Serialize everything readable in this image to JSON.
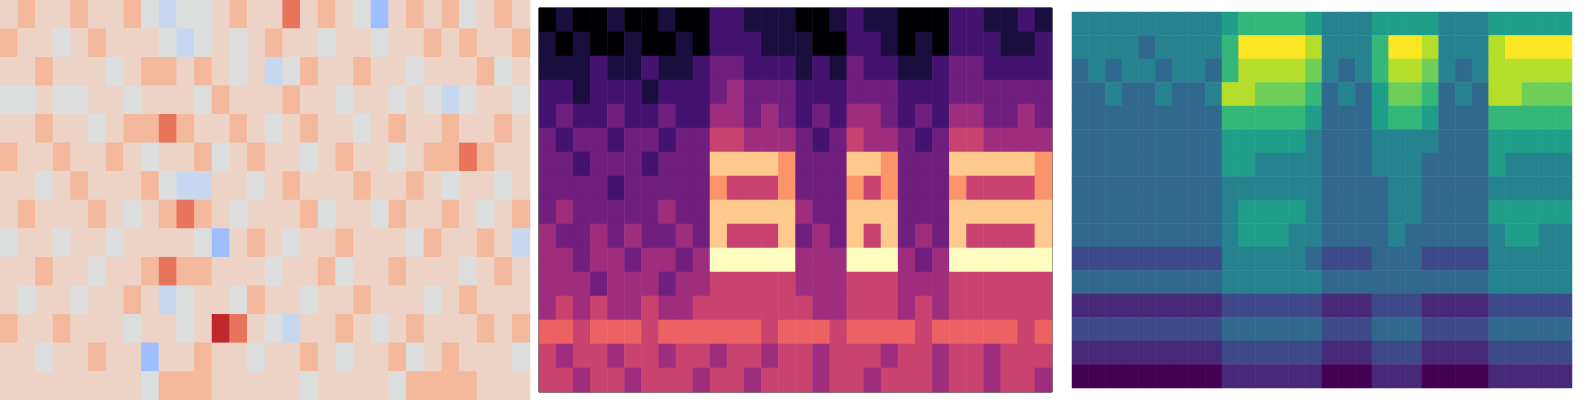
{
  "chart_data": [
    {
      "type": "heatmap",
      "tick_labels": false,
      "cells": [
        [
          1,
          2,
          1,
          1,
          2,
          1,
          1,
          2,
          0,
          -1,
          0,
          0,
          1,
          2,
          1,
          1,
          3,
          1,
          2,
          1,
          0,
          -2,
          1,
          2,
          1,
          2,
          0,
          1,
          2,
          1
        ],
        [
          2,
          1,
          1,
          0,
          1,
          2,
          1,
          1,
          1,
          0,
          -1,
          0,
          1,
          0,
          1,
          2,
          1,
          1,
          0,
          1,
          1,
          0,
          1,
          1,
          2,
          1,
          2,
          1,
          1,
          2
        ],
        [
          1,
          1,
          2,
          1,
          1,
          1,
          0,
          1,
          2,
          2,
          1,
          2,
          1,
          0,
          1,
          -1,
          0,
          2,
          1,
          1,
          2,
          1,
          1,
          0,
          1,
          1,
          1,
          2,
          0,
          1
        ],
        [
          0,
          0,
          1,
          0,
          0,
          1,
          1,
          0,
          1,
          1,
          1,
          0,
          2,
          1,
          1,
          1,
          2,
          1,
          1,
          0,
          1,
          1,
          0,
          1,
          0,
          -1,
          0,
          1,
          1,
          0
        ],
        [
          1,
          1,
          2,
          1,
          1,
          0,
          1,
          2,
          2,
          3,
          2,
          1,
          1,
          2,
          1,
          0,
          1,
          2,
          1,
          1,
          0,
          1,
          2,
          1,
          1,
          2,
          1,
          1,
          2,
          1
        ],
        [
          2,
          1,
          1,
          2,
          1,
          1,
          2,
          1,
          0,
          1,
          1,
          2,
          0,
          1,
          2,
          1,
          1,
          0,
          1,
          2,
          1,
          1,
          0,
          1,
          2,
          2,
          3,
          2,
          1,
          1
        ],
        [
          1,
          1,
          0,
          1,
          2,
          1,
          1,
          1,
          2,
          0,
          -1,
          -1,
          1,
          1,
          0,
          1,
          2,
          1,
          1,
          1,
          2,
          1,
          1,
          2,
          1,
          0,
          1,
          1,
          0,
          1
        ],
        [
          1,
          2,
          1,
          1,
          1,
          2,
          1,
          0,
          1,
          2,
          3,
          2,
          1,
          0,
          1,
          1,
          1,
          2,
          0,
          1,
          1,
          0,
          2,
          1,
          1,
          2,
          1,
          0,
          1,
          2
        ],
        [
          0,
          1,
          1,
          0,
          1,
          1,
          0,
          1,
          1,
          1,
          1,
          0,
          -2,
          1,
          2,
          1,
          0,
          1,
          1,
          2,
          1,
          1,
          1,
          0,
          2,
          1,
          1,
          2,
          1,
          -1
        ],
        [
          1,
          1,
          2,
          1,
          1,
          0,
          1,
          1,
          2,
          3,
          2,
          2,
          1,
          1,
          1,
          0,
          1,
          1,
          2,
          0,
          1,
          1,
          2,
          1,
          1,
          1,
          0,
          1,
          2,
          1
        ],
        [
          1,
          0,
          1,
          1,
          0,
          1,
          1,
          2,
          1,
          -1,
          0,
          1,
          1,
          0,
          2,
          1,
          1,
          0,
          1,
          1,
          2,
          1,
          1,
          1,
          0,
          1,
          2,
          1,
          1,
          1
        ],
        [
          2,
          1,
          1,
          2,
          1,
          1,
          1,
          0,
          1,
          1,
          0,
          1,
          4,
          3,
          1,
          0,
          -1,
          1,
          1,
          2,
          1,
          0,
          1,
          2,
          1,
          1,
          1,
          2,
          1,
          2
        ],
        [
          1,
          1,
          0,
          1,
          1,
          2,
          1,
          1,
          -2,
          1,
          1,
          2,
          1,
          1,
          0,
          1,
          1,
          2,
          1,
          0,
          1,
          1,
          2,
          0,
          1,
          2,
          1,
          1,
          1,
          0
        ],
        [
          1,
          1,
          1,
          1,
          1,
          1,
          1,
          1,
          0,
          2,
          2,
          2,
          1,
          1,
          1,
          1,
          1,
          0,
          1,
          1,
          1,
          1,
          0,
          2,
          2,
          2,
          2,
          1,
          1,
          1
        ]
      ]
    },
    {
      "type": "heatmap",
      "tick_labels": false,
      "cells": [
        [
          0,
          1,
          0,
          0,
          1,
          0,
          0,
          1,
          0,
          0,
          2,
          2,
          1,
          1,
          1,
          0,
          0,
          1,
          2,
          1,
          1,
          0,
          0,
          0,
          2,
          2,
          1,
          1,
          2,
          1
        ],
        [
          1,
          0,
          1,
          0,
          0,
          1,
          0,
          0,
          1,
          0,
          2,
          2,
          2,
          1,
          1,
          1,
          0,
          0,
          2,
          2,
          1,
          0,
          1,
          0,
          2,
          2,
          2,
          1,
          1,
          2
        ],
        [
          1,
          1,
          1,
          2,
          1,
          1,
          2,
          1,
          1,
          2,
          3,
          3,
          2,
          2,
          2,
          1,
          2,
          1,
          3,
          2,
          2,
          1,
          1,
          2,
          3,
          3,
          2,
          2,
          2,
          2
        ],
        [
          2,
          2,
          1,
          2,
          2,
          2,
          1,
          2,
          2,
          2,
          3,
          4,
          3,
          3,
          3,
          2,
          2,
          2,
          3,
          3,
          3,
          2,
          2,
          2,
          3,
          3,
          3,
          3,
          3,
          3
        ],
        [
          2,
          3,
          2,
          2,
          3,
          2,
          2,
          3,
          2,
          2,
          4,
          4,
          3,
          4,
          3,
          2,
          3,
          2,
          4,
          4,
          3,
          2,
          3,
          2,
          4,
          4,
          3,
          3,
          4,
          3
        ],
        [
          3,
          2,
          3,
          3,
          2,
          3,
          3,
          2,
          3,
          3,
          5,
          5,
          4,
          4,
          4,
          3,
          2,
          3,
          5,
          4,
          4,
          3,
          2,
          3,
          5,
          5,
          4,
          4,
          4,
          4
        ],
        [
          3,
          3,
          2,
          3,
          3,
          3,
          2,
          3,
          3,
          3,
          8,
          8,
          8,
          8,
          7,
          3,
          3,
          3,
          8,
          8,
          7,
          3,
          3,
          3,
          8,
          8,
          8,
          8,
          8,
          7
        ],
        [
          3,
          3,
          3,
          3,
          2,
          3,
          3,
          3,
          3,
          3,
          7,
          5,
          5,
          5,
          7,
          3,
          3,
          3,
          7,
          5,
          7,
          3,
          3,
          3,
          7,
          5,
          5,
          5,
          5,
          7
        ],
        [
          3,
          4,
          3,
          3,
          3,
          3,
          3,
          4,
          3,
          3,
          8,
          8,
          8,
          8,
          8,
          4,
          3,
          3,
          8,
          8,
          8,
          3,
          3,
          3,
          8,
          8,
          8,
          8,
          8,
          8
        ],
        [
          4,
          3,
          3,
          4,
          3,
          4,
          3,
          3,
          4,
          3,
          8,
          5,
          5,
          5,
          8,
          3,
          4,
          3,
          8,
          5,
          8,
          3,
          4,
          3,
          8,
          5,
          5,
          5,
          5,
          8
        ],
        [
          4,
          4,
          3,
          4,
          4,
          3,
          4,
          4,
          3,
          4,
          9,
          9,
          9,
          9,
          9,
          4,
          4,
          4,
          9,
          9,
          9,
          4,
          3,
          4,
          9,
          9,
          9,
          9,
          9,
          9
        ],
        [
          4,
          4,
          4,
          3,
          4,
          4,
          4,
          3,
          4,
          4,
          5,
          5,
          5,
          5,
          5,
          4,
          4,
          4,
          5,
          5,
          5,
          4,
          4,
          4,
          5,
          5,
          5,
          5,
          5,
          5
        ],
        [
          4,
          5,
          4,
          5,
          4,
          4,
          5,
          4,
          4,
          5,
          5,
          5,
          5,
          5,
          5,
          5,
          4,
          4,
          5,
          5,
          5,
          4,
          5,
          4,
          5,
          5,
          5,
          5,
          5,
          5
        ],
        [
          6,
          6,
          5,
          6,
          6,
          6,
          5,
          6,
          6,
          6,
          6,
          6,
          6,
          5,
          6,
          6,
          6,
          5,
          6,
          6,
          6,
          6,
          5,
          6,
          6,
          6,
          6,
          6,
          5,
          6
        ],
        [
          5,
          4,
          5,
          5,
          4,
          5,
          5,
          4,
          5,
          5,
          4,
          5,
          5,
          4,
          5,
          5,
          4,
          5,
          5,
          5,
          4,
          5,
          5,
          4,
          5,
          5,
          4,
          5,
          5,
          5
        ],
        [
          5,
          5,
          4,
          5,
          5,
          4,
          5,
          5,
          5,
          4,
          5,
          5,
          4,
          5,
          5,
          5,
          4,
          5,
          5,
          4,
          5,
          5,
          5,
          4,
          5,
          5,
          4,
          5,
          5,
          4
        ]
      ]
    },
    {
      "type": "heatmap",
      "tick_labels": false,
      "cells": [
        [
          4,
          4,
          4,
          4,
          4,
          4,
          4,
          4,
          4,
          5,
          6,
          6,
          6,
          6,
          5,
          4,
          4,
          4,
          5,
          5,
          5,
          5,
          4,
          4,
          4,
          5,
          5,
          5,
          5,
          5
        ],
        [
          4,
          4,
          4,
          4,
          3,
          4,
          4,
          4,
          4,
          6,
          9,
          9,
          9,
          9,
          8,
          4,
          4,
          4,
          6,
          9,
          9,
          8,
          4,
          4,
          4,
          8,
          9,
          9,
          9,
          9
        ],
        [
          3,
          4,
          3,
          4,
          4,
          3,
          4,
          4,
          3,
          6,
          8,
          8,
          8,
          8,
          7,
          4,
          3,
          4,
          6,
          8,
          8,
          7,
          4,
          3,
          4,
          8,
          8,
          8,
          8,
          8
        ],
        [
          3,
          3,
          4,
          3,
          3,
          4,
          3,
          3,
          4,
          8,
          8,
          7,
          7,
          7,
          6,
          3,
          4,
          3,
          5,
          7,
          7,
          6,
          3,
          4,
          3,
          8,
          8,
          7,
          7,
          7
        ],
        [
          3,
          3,
          3,
          3,
          3,
          3,
          3,
          3,
          3,
          6,
          6,
          6,
          6,
          6,
          5,
          3,
          3,
          3,
          5,
          6,
          6,
          5,
          3,
          3,
          3,
          6,
          6,
          6,
          6,
          6
        ],
        [
          3,
          3,
          3,
          3,
          3,
          3,
          3,
          3,
          3,
          5,
          5,
          5,
          5,
          5,
          4,
          3,
          3,
          3,
          4,
          4,
          4,
          4,
          3,
          3,
          3,
          5,
          5,
          5,
          5,
          5
        ],
        [
          3,
          3,
          3,
          3,
          3,
          3,
          3,
          3,
          3,
          5,
          5,
          4,
          4,
          4,
          4,
          3,
          3,
          3,
          4,
          4,
          4,
          3,
          3,
          3,
          3,
          5,
          4,
          4,
          4,
          4
        ],
        [
          3,
          3,
          3,
          3,
          3,
          3,
          3,
          3,
          3,
          4,
          4,
          4,
          4,
          4,
          4,
          3,
          3,
          3,
          3,
          4,
          4,
          3,
          3,
          3,
          3,
          4,
          4,
          4,
          4,
          4
        ],
        [
          3,
          3,
          3,
          3,
          3,
          3,
          3,
          3,
          3,
          4,
          5,
          5,
          5,
          5,
          4,
          3,
          3,
          3,
          3,
          4,
          4,
          3,
          3,
          3,
          3,
          5,
          5,
          5,
          5,
          5
        ],
        [
          3,
          3,
          3,
          3,
          3,
          3,
          3,
          3,
          3,
          4,
          5,
          5,
          5,
          4,
          4,
          3,
          3,
          3,
          3,
          4,
          3,
          3,
          3,
          3,
          3,
          4,
          5,
          5,
          4,
          4
        ],
        [
          2,
          2,
          2,
          2,
          2,
          2,
          2,
          2,
          2,
          4,
          4,
          4,
          4,
          4,
          3,
          2,
          2,
          2,
          3,
          3,
          3,
          2,
          2,
          2,
          2,
          4,
          4,
          4,
          4,
          4
        ],
        [
          3,
          3,
          3,
          3,
          3,
          3,
          3,
          3,
          3,
          4,
          4,
          4,
          4,
          4,
          4,
          3,
          3,
          3,
          3,
          3,
          3,
          3,
          3,
          3,
          3,
          4,
          4,
          4,
          4,
          4
        ],
        [
          1,
          1,
          1,
          1,
          1,
          1,
          1,
          1,
          1,
          2,
          2,
          2,
          2,
          2,
          2,
          1,
          1,
          1,
          2,
          2,
          2,
          1,
          1,
          1,
          1,
          2,
          2,
          2,
          2,
          2
        ],
        [
          2,
          2,
          2,
          2,
          2,
          2,
          2,
          2,
          2,
          3,
          3,
          3,
          3,
          3,
          3,
          2,
          2,
          2,
          3,
          3,
          3,
          2,
          2,
          2,
          2,
          3,
          3,
          3,
          3,
          3
        ],
        [
          1,
          1,
          1,
          1,
          1,
          1,
          1,
          1,
          1,
          2,
          2,
          2,
          2,
          2,
          2,
          1,
          1,
          1,
          2,
          2,
          2,
          1,
          1,
          1,
          1,
          2,
          2,
          2,
          2,
          2
        ],
        [
          0,
          0,
          0,
          0,
          0,
          0,
          0,
          0,
          0,
          1,
          1,
          1,
          1,
          1,
          1,
          0,
          0,
          0,
          1,
          1,
          1,
          0,
          0,
          0,
          0,
          1,
          1,
          1,
          1,
          1
        ]
      ]
    }
  ]
}
